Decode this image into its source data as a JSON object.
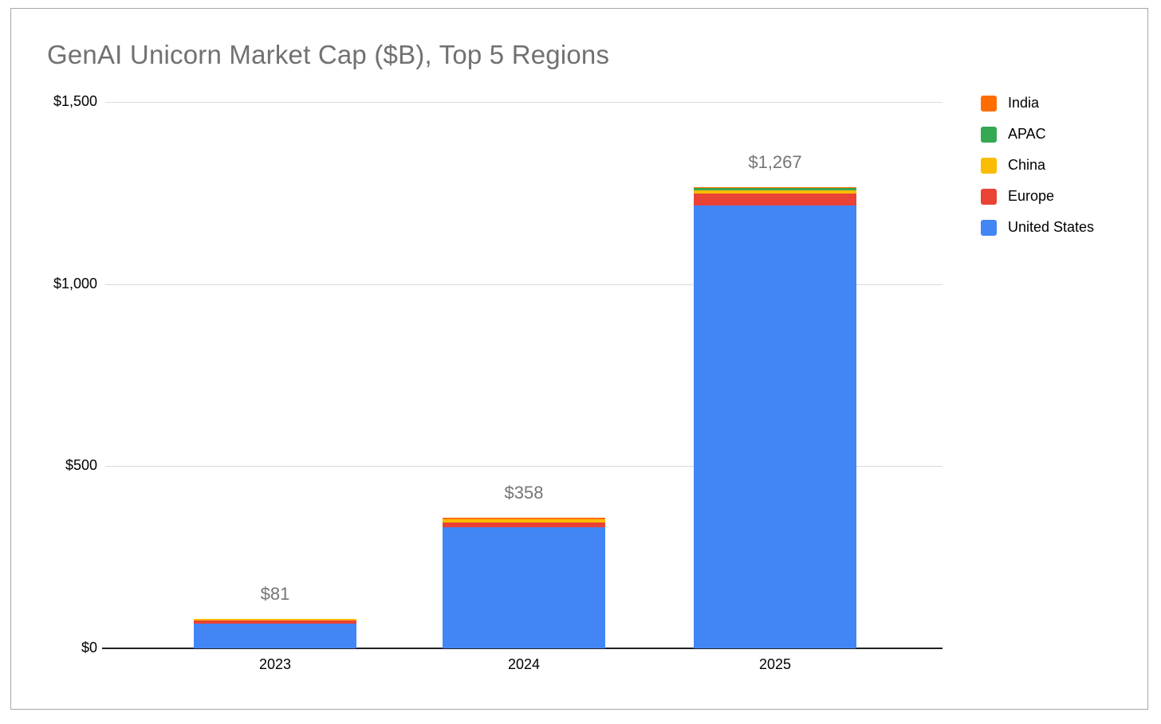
{
  "window": {
    "background": "#ffffff",
    "frame_border_color": "#a6a6a6"
  },
  "chart_data": {
    "type": "bar",
    "stacked": true,
    "title": "GenAI Unicorn Market Cap ($B), Top 5 Regions",
    "title_color": "#717171",
    "categories": [
      "2023",
      "2024",
      "2025"
    ],
    "series": [
      {
        "name": "United States",
        "color": "#4285F4",
        "values": [
          67,
          332,
          1216
        ]
      },
      {
        "name": "Europe",
        "color": "#EA4335",
        "values": [
          9,
          13,
          32
        ]
      },
      {
        "name": "China",
        "color": "#FBBC04",
        "values": [
          5,
          9,
          10
        ]
      },
      {
        "name": "APAC",
        "color": "#34A853",
        "values": [
          0,
          0,
          6
        ]
      },
      {
        "name": "India",
        "color": "#FF6D01",
        "values": [
          0,
          4,
          3
        ]
      }
    ],
    "stack_order": "bottom-to-top",
    "totals": [
      81,
      358,
      1267
    ],
    "total_labels": [
      "$81",
      "$358",
      "$1,267"
    ],
    "total_label_color": "#757575",
    "xlabel": "",
    "ylabel": "",
    "ylim": [
      0,
      1500
    ],
    "yticks": [
      {
        "value": 0,
        "label": "$0"
      },
      {
        "value": 500,
        "label": "$500"
      },
      {
        "value": 1000,
        "label": "$1,000"
      },
      {
        "value": 1500,
        "label": "$1,500"
      }
    ],
    "grid": true,
    "gridline_color": "#dadada",
    "axis_line_color": "#212121",
    "legend": {
      "position": "top-right",
      "items": [
        {
          "label": "India",
          "color": "#FF6D01"
        },
        {
          "label": "APAC",
          "color": "#34A853"
        },
        {
          "label": "China",
          "color": "#FBBC04"
        },
        {
          "label": "Europe",
          "color": "#EA4335"
        },
        {
          "label": "United States",
          "color": "#4285F4"
        }
      ]
    }
  }
}
